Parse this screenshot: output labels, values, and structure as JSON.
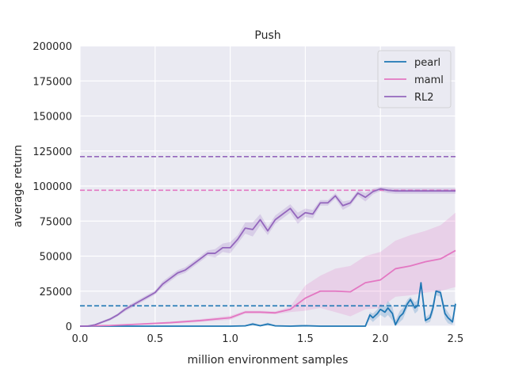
{
  "chart_data": {
    "type": "line",
    "title": "Push",
    "xlabel": "million environment samples",
    "ylabel": "average return",
    "xlim": [
      0.0,
      2.5
    ],
    "ylim": [
      0,
      200000
    ],
    "xticks": [
      "0.0",
      "0.5",
      "1.0",
      "1.5",
      "2.0",
      "2.5"
    ],
    "yticks": [
      "0",
      "25000",
      "50000",
      "75000",
      "100000",
      "125000",
      "150000",
      "175000",
      "200000"
    ],
    "grid": true,
    "legend_position": "top-right",
    "background": "#eaeaf2",
    "series": [
      {
        "name": "pearl",
        "color": "#1f77b4",
        "x": [
          0.0,
          0.5,
          1.0,
          1.1,
          1.15,
          1.2,
          1.25,
          1.3,
          1.4,
          1.5,
          1.6,
          1.7,
          1.8,
          1.9,
          1.93,
          1.95,
          1.98,
          2.0,
          2.03,
          2.05,
          2.08,
          2.1,
          2.13,
          2.15,
          2.18,
          2.2,
          2.23,
          2.25,
          2.27,
          2.3,
          2.33,
          2.35,
          2.37,
          2.4,
          2.43,
          2.45,
          2.48,
          2.5
        ],
        "values": [
          0,
          0,
          0,
          200,
          1500,
          300,
          1500,
          200,
          0,
          300,
          0,
          0,
          0,
          0,
          8000,
          6000,
          9000,
          12000,
          10000,
          13000,
          9000,
          1000,
          7000,
          9000,
          16000,
          19000,
          13000,
          15000,
          31000,
          4000,
          6000,
          13000,
          25000,
          24000,
          9000,
          6000,
          3000,
          16000
        ],
        "upper": [
          0,
          0,
          0,
          800,
          2500,
          1000,
          2500,
          800,
          500,
          1000,
          500,
          500,
          500,
          500,
          10000,
          9000,
          12000,
          16000,
          14000,
          18000,
          14000,
          4000,
          11000,
          13000,
          19000,
          21000,
          17000,
          19000,
          31000,
          6000,
          9000,
          17000,
          26000,
          26000,
          13000,
          10000,
          5000,
          19000
        ],
        "lower": [
          0,
          0,
          0,
          0,
          500,
          0,
          500,
          0,
          0,
          0,
          0,
          0,
          0,
          0,
          5000,
          3000,
          6000,
          8000,
          6000,
          8000,
          4000,
          0,
          3000,
          5000,
          13000,
          16000,
          9000,
          11000,
          29000,
          2000,
          3000,
          9000,
          22000,
          21000,
          5000,
          2000,
          1000,
          13000
        ],
        "reference_line": 14500
      },
      {
        "name": "maml",
        "color": "#e377c2",
        "x": [
          0.0,
          0.2,
          0.4,
          0.6,
          0.8,
          1.0,
          1.1,
          1.2,
          1.3,
          1.4,
          1.5,
          1.6,
          1.7,
          1.8,
          1.9,
          2.0,
          2.1,
          2.2,
          2.3,
          2.4,
          2.5
        ],
        "values": [
          0,
          500,
          1500,
          2500,
          4000,
          6000,
          10000,
          10000,
          9500,
          12000,
          20000,
          25000,
          25000,
          24500,
          31000,
          33000,
          41000,
          43000,
          46000,
          48000,
          54000
        ],
        "upper": [
          0,
          800,
          2000,
          3200,
          5000,
          7500,
          11000,
          11000,
          10500,
          14000,
          29000,
          36000,
          41000,
          43000,
          50000,
          53000,
          61000,
          65000,
          68000,
          72000,
          81000
        ],
        "lower": [
          0,
          200,
          1000,
          1800,
          3000,
          4500,
          9000,
          9000,
          8500,
          10000,
          11000,
          13000,
          10000,
          7000,
          12000,
          13000,
          21000,
          22000,
          24000,
          25000,
          28000
        ],
        "reference_line": 97000
      },
      {
        "name": "RL2",
        "color": "#9467bd",
        "x": [
          0.0,
          0.05,
          0.1,
          0.15,
          0.2,
          0.25,
          0.3,
          0.35,
          0.4,
          0.45,
          0.5,
          0.55,
          0.6,
          0.65,
          0.7,
          0.75,
          0.8,
          0.85,
          0.9,
          0.95,
          1.0,
          1.05,
          1.1,
          1.15,
          1.2,
          1.25,
          1.3,
          1.35,
          1.4,
          1.45,
          1.5,
          1.55,
          1.6,
          1.65,
          1.7,
          1.75,
          1.8,
          1.85,
          1.9,
          1.95,
          2.0,
          2.05,
          2.1,
          2.15,
          2.2,
          2.25,
          2.3,
          2.35,
          2.4,
          2.45,
          2.5
        ],
        "values": [
          0,
          0,
          1000,
          3000,
          5000,
          8000,
          12000,
          15000,
          18000,
          21000,
          24000,
          30000,
          34000,
          38000,
          40000,
          44000,
          48000,
          52000,
          52000,
          56000,
          56000,
          62000,
          70000,
          69000,
          76000,
          68000,
          76000,
          80000,
          84000,
          77000,
          81000,
          80000,
          88000,
          88000,
          93000,
          86000,
          88000,
          95000,
          92000,
          96000,
          98000,
          97000,
          96500,
          96500,
          96500,
          96500,
          96500,
          96500,
          96500,
          96500,
          96500
        ],
        "upper": [
          0,
          0,
          1500,
          3800,
          6000,
          9000,
          13500,
          16500,
          19500,
          22500,
          25500,
          32000,
          36000,
          40000,
          42000,
          46000,
          50000,
          54000,
          55000,
          59000,
          60000,
          65000,
          74000,
          74000,
          80000,
          71000,
          79000,
          83000,
          87000,
          81000,
          84000,
          83000,
          90000,
          90000,
          95000,
          89000,
          90000,
          97000,
          95000,
          98000,
          99500,
          99000,
          98500,
          98500,
          98500,
          98500,
          98500,
          98500,
          98500,
          98500,
          98500
        ],
        "lower": [
          0,
          0,
          500,
          2200,
          4000,
          7000,
          10500,
          13500,
          16500,
          19500,
          22500,
          28000,
          32000,
          36000,
          38000,
          42000,
          46000,
          50000,
          49000,
          53000,
          52000,
          59000,
          66000,
          64000,
          72000,
          65000,
          73000,
          77000,
          81000,
          73000,
          78000,
          77000,
          86000,
          86000,
          91000,
          83000,
          86000,
          93000,
          89000,
          94000,
          96500,
          95000,
          94500,
          94500,
          94500,
          94500,
          94500,
          94500,
          94500,
          94500,
          94500
        ],
        "reference_line": 121000
      }
    ]
  }
}
